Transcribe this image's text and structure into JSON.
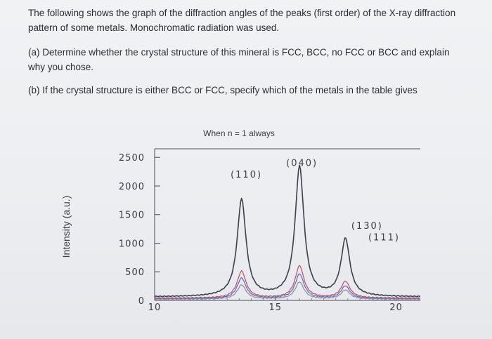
{
  "question": {
    "intro": "The following shows the graph of the diffraction angles of the peaks (first order) of the X-ray diffraction pattern of some metals. Monochromatic radiation was used.",
    "part_a": "(a) Determine whether the crystal structure of this mineral is FCC, BCC, no FCC or BCC and explain why you chose.",
    "part_b": "(b) If the crystal structure is either BCC or FCC, specify which of the metals in the table gives"
  },
  "chart_data": {
    "type": "line",
    "annotation_top": "When n = 1 always",
    "ylabel": "Intensity (a.u.)",
    "y_ticks": [
      "2500",
      "2000",
      "1500",
      "1000",
      "500",
      "0"
    ],
    "x_ticks": [
      "10",
      "15",
      "20"
    ],
    "xlim": [
      10,
      21
    ],
    "ylim": [
      0,
      2650
    ],
    "grid": false,
    "peak_labels": [
      {
        "text": "(040)",
        "x": 16.1,
        "y": 2350
      },
      {
        "text": "(110)",
        "x": 13.8,
        "y": 2150
      },
      {
        "text": "(130)",
        "x": 18.8,
        "y": 1250
      },
      {
        "text": "(111)",
        "x": 19.5,
        "y": 1050
      }
    ],
    "series": [
      {
        "color": "#3c4048",
        "peaks": [
          [
            13.6,
            1700
          ],
          [
            16.0,
            2270
          ],
          [
            17.9,
            1000
          ]
        ],
        "base": 60
      },
      {
        "color": "#c64a6a",
        "peaks": [
          [
            13.6,
            470
          ],
          [
            16.0,
            560
          ],
          [
            17.9,
            290
          ]
        ],
        "base": 40
      },
      {
        "color": "#5a6fb0",
        "peaks": [
          [
            13.6,
            360
          ],
          [
            16.0,
            430
          ],
          [
            17.9,
            220
          ]
        ],
        "base": 30
      },
      {
        "color": "#8a8fa0",
        "peaks": [
          [
            13.6,
            250
          ],
          [
            16.0,
            300
          ],
          [
            17.9,
            160
          ]
        ],
        "base": 20
      }
    ]
  }
}
